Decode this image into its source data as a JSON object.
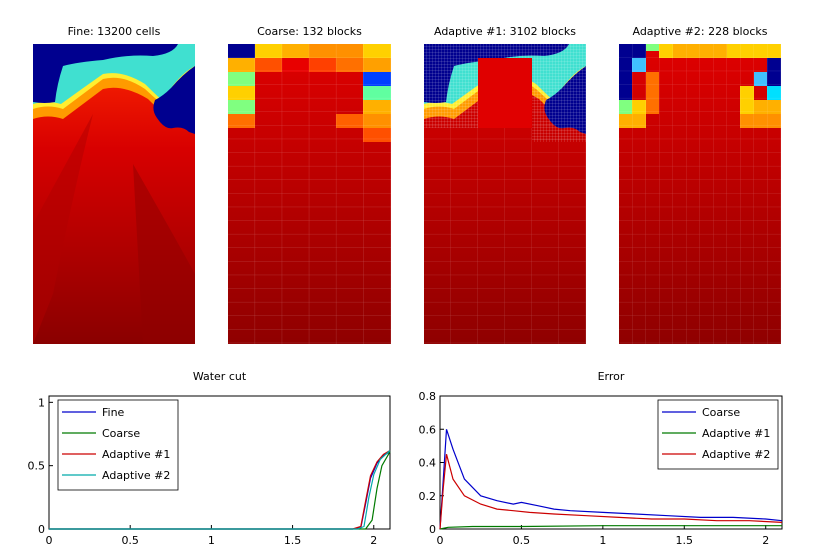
{
  "field_panels": [
    {
      "title": "Fine: 13200 cells"
    },
    {
      "title": "Coarse: 132 blocks"
    },
    {
      "title": "Adaptive #1: 3102 blocks"
    },
    {
      "title": "Adaptive #2: 228 blocks"
    }
  ],
  "colors": {
    "fine": "#0000cc",
    "coarse": "#007a00",
    "adaptive1": "#cc0000",
    "adaptive2": "#00aaaa",
    "field_low": "#00008f",
    "field_mid": "#e00000",
    "field_high": "#800000"
  },
  "chart_data": [
    {
      "type": "line",
      "title": "Water cut",
      "xlim": [
        0,
        2.1
      ],
      "ylim": [
        0,
        1.05
      ],
      "xticks": [
        "0",
        "0.5",
        "1",
        "1.5",
        "2"
      ],
      "yticks": [
        "0",
        "0.5",
        "1"
      ],
      "legend_position": "top-left",
      "series": [
        {
          "name": "Fine",
          "color_key": "fine",
          "points": [
            [
              0,
              0
            ],
            [
              1.87,
              0
            ],
            [
              1.92,
              0.01
            ],
            [
              1.95,
              0.2
            ],
            [
              1.98,
              0.4
            ],
            [
              2.02,
              0.52
            ],
            [
              2.06,
              0.58
            ],
            [
              2.1,
              0.61
            ]
          ]
        },
        {
          "name": "Coarse",
          "color_key": "coarse",
          "points": [
            [
              0,
              0
            ],
            [
              1.95,
              0
            ],
            [
              1.99,
              0.07
            ],
            [
              2.02,
              0.32
            ],
            [
              2.05,
              0.5
            ],
            [
              2.1,
              0.61
            ]
          ]
        },
        {
          "name": "Adaptive #1",
          "color_key": "adaptive1",
          "points": [
            [
              0,
              0
            ],
            [
              1.87,
              0
            ],
            [
              1.92,
              0.02
            ],
            [
              1.95,
              0.22
            ],
            [
              1.98,
              0.42
            ],
            [
              2.02,
              0.53
            ],
            [
              2.06,
              0.59
            ],
            [
              2.1,
              0.62
            ]
          ]
        },
        {
          "name": "Adaptive #2",
          "color_key": "adaptive2",
          "points": [
            [
              0,
              0
            ],
            [
              1.9,
              0
            ],
            [
              1.94,
              0.02
            ],
            [
              1.97,
              0.25
            ],
            [
              2.0,
              0.43
            ],
            [
              2.04,
              0.55
            ],
            [
              2.1,
              0.62
            ]
          ]
        }
      ]
    },
    {
      "type": "line",
      "title": "Error",
      "xlim": [
        0,
        2.1
      ],
      "ylim": [
        0,
        0.8
      ],
      "xticks": [
        "0",
        "0.5",
        "1",
        "1.5",
        "2"
      ],
      "yticks": [
        "0",
        "0.2",
        "0.4",
        "0.6",
        "0.8"
      ],
      "legend_position": "top-right",
      "series": [
        {
          "name": "Coarse",
          "color_key": "fine",
          "points": [
            [
              0,
              0
            ],
            [
              0.02,
              0.3
            ],
            [
              0.04,
              0.6
            ],
            [
              0.08,
              0.48
            ],
            [
              0.15,
              0.3
            ],
            [
              0.25,
              0.2
            ],
            [
              0.35,
              0.17
            ],
            [
              0.45,
              0.15
            ],
            [
              0.5,
              0.16
            ],
            [
              0.6,
              0.14
            ],
            [
              0.7,
              0.12
            ],
            [
              0.8,
              0.11
            ],
            [
              1.0,
              0.1
            ],
            [
              1.2,
              0.09
            ],
            [
              1.4,
              0.08
            ],
            [
              1.6,
              0.07
            ],
            [
              1.8,
              0.07
            ],
            [
              2.0,
              0.06
            ],
            [
              2.1,
              0.05
            ]
          ]
        },
        {
          "name": "Adaptive #1",
          "color_key": "coarse",
          "points": [
            [
              0,
              0
            ],
            [
              0.05,
              0.01
            ],
            [
              0.2,
              0.015
            ],
            [
              0.5,
              0.015
            ],
            [
              1.0,
              0.02
            ],
            [
              1.5,
              0.02
            ],
            [
              1.8,
              0.02
            ],
            [
              2.1,
              0.02
            ]
          ]
        },
        {
          "name": "Adaptive #2",
          "color_key": "adaptive1",
          "points": [
            [
              0,
              0
            ],
            [
              0.02,
              0.25
            ],
            [
              0.04,
              0.45
            ],
            [
              0.08,
              0.3
            ],
            [
              0.15,
              0.2
            ],
            [
              0.25,
              0.15
            ],
            [
              0.35,
              0.12
            ],
            [
              0.45,
              0.11
            ],
            [
              0.55,
              0.1
            ],
            [
              0.7,
              0.09
            ],
            [
              0.9,
              0.08
            ],
            [
              1.1,
              0.07
            ],
            [
              1.3,
              0.06
            ],
            [
              1.5,
              0.06
            ],
            [
              1.7,
              0.05
            ],
            [
              1.9,
              0.05
            ],
            [
              2.1,
              0.04
            ]
          ]
        }
      ]
    }
  ]
}
